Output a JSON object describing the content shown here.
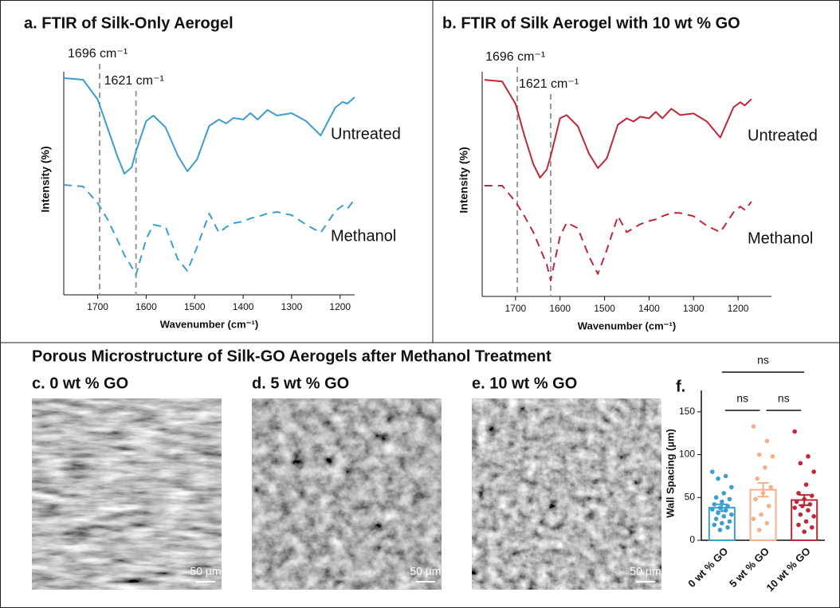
{
  "section_title": "Porous Microstructure of Silk-GO Aerogels after Methanol Treatment",
  "images": [
    {
      "label": "c. 0 wt % GO",
      "scale_bar": "50 µm"
    },
    {
      "label": "d. 5 wt % GO",
      "scale_bar": "50 µm"
    },
    {
      "label": "e. 10 wt % GO",
      "scale_bar": "50 µm"
    }
  ],
  "chart_data": [
    {
      "type": "line",
      "title": "a. FTIR of Silk-Only Aerogel",
      "x_label": "Wavenumber (cm⁻¹)",
      "y_label": "Intensity (%)",
      "xlim": [
        1770,
        1170
      ],
      "xticks": [
        1700,
        1600,
        1500,
        1400,
        1300,
        1200
      ],
      "ylim": [
        0,
        290
      ],
      "annotations": [
        {
          "text": "1696 cm⁻¹",
          "x": 1696
        },
        {
          "text": "1621 cm⁻¹",
          "x": 1621
        }
      ],
      "x": [
        1770,
        1730,
        1700,
        1680,
        1660,
        1645,
        1630,
        1621,
        1600,
        1585,
        1560,
        1535,
        1515,
        1495,
        1470,
        1450,
        1435,
        1420,
        1400,
        1385,
        1370,
        1350,
        1330,
        1300,
        1270,
        1240,
        1210,
        1195,
        1185,
        1170
      ],
      "series": [
        {
          "name": "Untreated",
          "color": "#3d9dcc",
          "dash": false,
          "values": [
            272,
            270,
            245,
            210,
            175,
            152,
            160,
            180,
            218,
            225,
            210,
            175,
            155,
            170,
            212,
            220,
            215,
            222,
            220,
            228,
            220,
            232,
            225,
            228,
            218,
            200,
            235,
            242,
            240,
            248
          ]
        },
        {
          "name": "Methanol",
          "color": "#3d9dcc",
          "dash": true,
          "values": [
            138,
            136,
            115,
            95,
            70,
            50,
            35,
            25,
            70,
            88,
            85,
            45,
            30,
            60,
            102,
            78,
            85,
            90,
            92,
            96,
            98,
            102,
            104,
            100,
            88,
            78,
            105,
            112,
            108,
            120
          ]
        }
      ]
    },
    {
      "type": "line",
      "title": "b. FTIR of Silk Aerogel with 10 wt % GO",
      "x_label": "Wavenumber (cm⁻¹)",
      "y_label": "Intensity (%)",
      "xlim": [
        1775,
        1125
      ],
      "xticks": [
        1700,
        1600,
        1500,
        1400,
        1300,
        1200
      ],
      "ylim": [
        0,
        290
      ],
      "annotations": [
        {
          "text": "1696 cm⁻¹",
          "x": 1696
        },
        {
          "text": "1621 cm⁻¹",
          "x": 1621
        }
      ],
      "x": [
        1770,
        1730,
        1700,
        1680,
        1660,
        1645,
        1630,
        1621,
        1600,
        1585,
        1560,
        1535,
        1515,
        1495,
        1470,
        1450,
        1435,
        1420,
        1400,
        1385,
        1370,
        1350,
        1330,
        1300,
        1270,
        1240,
        1210,
        1195,
        1185,
        1170
      ],
      "series": [
        {
          "name": "Untreated",
          "color": "#c0283a",
          "dash": false,
          "values": [
            270,
            268,
            240,
            200,
            165,
            148,
            158,
            175,
            222,
            226,
            212,
            178,
            160,
            172,
            214,
            222,
            218,
            224,
            222,
            230,
            222,
            234,
            226,
            228,
            218,
            198,
            236,
            242,
            238,
            246
          ]
        },
        {
          "name": "Methanol",
          "color": "#c0283a",
          "dash": true,
          "values": [
            138,
            138,
            118,
            100,
            80,
            60,
            40,
            20,
            75,
            92,
            85,
            50,
            28,
            58,
            100,
            80,
            85,
            90,
            94,
            96,
            100,
            104,
            104,
            100,
            88,
            80,
            105,
            112,
            108,
            118
          ]
        }
      ]
    },
    {
      "type": "bar",
      "title": "f.",
      "y_label": "Wall Spacing (µm)",
      "categories": [
        "0 wt % GO",
        "5 wt % GO",
        "10 wt % GO"
      ],
      "colors": [
        "#3d9dcc",
        "#f4b08a",
        "#c0283a"
      ],
      "values": [
        38,
        59,
        47
      ],
      "errors": [
        4,
        8,
        6
      ],
      "points": [
        [
          80,
          75,
          72,
          62,
          55,
          50,
          48,
          45,
          42,
          40,
          38,
          36,
          35,
          32,
          30,
          28,
          25,
          22,
          20,
          18,
          15,
          12
        ],
        [
          133,
          116,
          100,
          98,
          85,
          72,
          62,
          55,
          48,
          40,
          30,
          25,
          20,
          12
        ],
        [
          127,
          98,
          90,
          80,
          65,
          55,
          52,
          48,
          45,
          42,
          40,
          38,
          35,
          30,
          28,
          22,
          18,
          15,
          10
        ]
      ],
      "ylim": [
        0,
        175
      ],
      "yticks": [
        0,
        50,
        100,
        150
      ],
      "annotations": [
        {
          "text": "ns",
          "from": 0,
          "to": 2
        },
        {
          "text": "ns",
          "from": 0,
          "to": 1
        },
        {
          "text": "ns",
          "from": 1,
          "to": 2
        }
      ]
    }
  ]
}
